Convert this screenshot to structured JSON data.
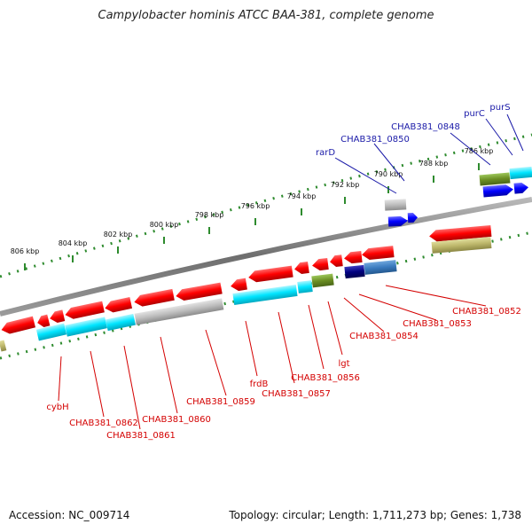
{
  "title": "Campylobacter hominis ATCC BAA-381, complete genome",
  "footer": {
    "accession": "Accession: NC_009714",
    "summary": "Topology: circular; Length: 1,711,273 bp; Genes: 1,738"
  },
  "ticks": [
    "806 kbp",
    "804 kbp",
    "802 kbp",
    "800 kbp",
    "798 kbp",
    "796 kbp",
    "794 kbp",
    "792 kbp",
    "790 kbp",
    "788 kbp",
    "786 kbp"
  ],
  "labels": {
    "top": [
      "rarD",
      "CHAB381_0850",
      "CHAB381_0848",
      "purC",
      "purS"
    ],
    "bottom": [
      "cybH",
      "CHAB381_0862",
      "CHAB381_0861",
      "CHAB381_0860",
      "CHAB381_0859",
      "frdB",
      "CHAB381_0857",
      "CHAB381_0856",
      "lgt",
      "CHAB381_0854",
      "CHAB381_0853",
      "CHAB381_0852"
    ]
  },
  "colors": {
    "cds": "#ff0000",
    "cog_cyan": "#00e5ff",
    "cog_gray": "#b0b0b0",
    "cog_olive": "#6b8e23",
    "cog_khaki": "#bdb76b",
    "cog_blue": "#1f5fa8",
    "cog_navy": "#00007f",
    "backbone": "#7f7f7f",
    "gc_dots": "#2e8b2e",
    "label_red": "#d40000",
    "label_blue": "#1a1aa8"
  }
}
